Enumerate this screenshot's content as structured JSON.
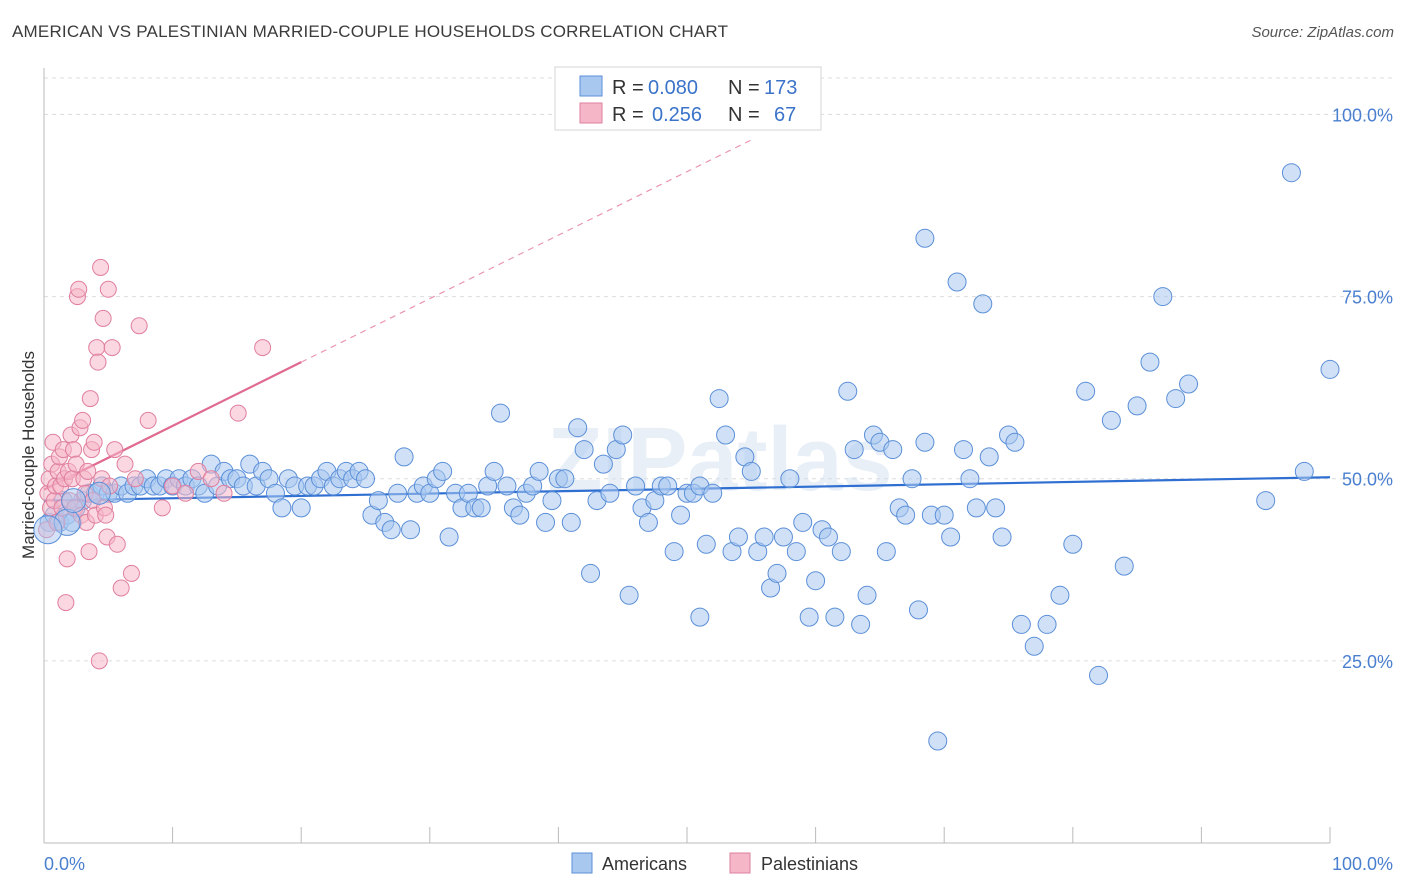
{
  "title": "AMERICAN VS PALESTINIAN MARRIED-COUPLE HOUSEHOLDS CORRELATION CHART",
  "source": "Source: ZipAtlas.com",
  "watermark": "ZIPatlas",
  "colors": {
    "americans_fill": "#a9c8f0",
    "americans_stroke": "#5b8fd8",
    "americans_line": "#2f6fd1",
    "palestinians_fill": "#f5b7c8",
    "palestinians_stroke": "#e07f9f",
    "palestinians_line": "#e0698f",
    "axis_label": "#4a7fd0"
  },
  "legend": {
    "rows": [
      {
        "r_label": "R =",
        "r_value": "0.080",
        "n_label": "N =",
        "n_value": "173"
      },
      {
        "r_label": "R =",
        "r_value": "0.256",
        "n_label": "N =",
        "n_value": "67"
      }
    ]
  },
  "bottom_legend": [
    "Americans",
    "Palestinians"
  ],
  "chart_data": {
    "type": "scatter",
    "title": "AMERICAN VS PALESTINIAN MARRIED-COUPLE HOUSEHOLDS CORRELATION CHART",
    "xlabel": "",
    "ylabel": "Married-couple Households",
    "xlim": [
      0,
      100
    ],
    "ylim": [
      0,
      105
    ],
    "x_tick_labels": [
      "0.0%",
      "100.0%"
    ],
    "y_ticks": [
      25,
      50,
      75,
      100
    ],
    "y_tick_labels": [
      "25.0%",
      "50.0%",
      "75.0%",
      "100.0%"
    ],
    "grid": true,
    "legend_position": "top-center",
    "series": [
      {
        "name": "Americans",
        "r": 0.08,
        "n": 173,
        "trend": {
          "x": [
            0,
            100
          ],
          "y": [
            47.0,
            50.2
          ]
        },
        "points": [
          [
            0.4,
            44
          ],
          [
            0.8,
            45
          ],
          [
            1.2,
            44
          ],
          [
            1.5,
            47
          ],
          [
            1.8,
            45
          ],
          [
            2.2,
            44
          ],
          [
            2.5,
            46
          ],
          [
            3,
            47
          ],
          [
            3.5,
            48
          ],
          [
            4,
            48
          ],
          [
            4.5,
            49
          ],
          [
            5,
            48
          ],
          [
            5.5,
            48
          ],
          [
            6,
            49
          ],
          [
            6.5,
            48
          ],
          [
            7,
            49
          ],
          [
            7.5,
            49
          ],
          [
            8,
            50
          ],
          [
            8.5,
            49
          ],
          [
            9,
            49
          ],
          [
            9.5,
            50
          ],
          [
            10,
            49
          ],
          [
            10.5,
            50
          ],
          [
            11,
            49
          ],
          [
            11.5,
            50
          ],
          [
            12,
            49
          ],
          [
            12.5,
            48
          ],
          [
            13,
            52
          ],
          [
            13.5,
            49
          ],
          [
            14,
            51
          ],
          [
            14.5,
            50
          ],
          [
            15,
            50
          ],
          [
            15.5,
            49
          ],
          [
            16,
            52
          ],
          [
            16.5,
            49
          ],
          [
            17,
            51
          ],
          [
            17.5,
            50
          ],
          [
            18,
            48
          ],
          [
            18.5,
            46
          ],
          [
            19,
            50
          ],
          [
            19.5,
            49
          ],
          [
            20,
            46
          ],
          [
            20.5,
            49
          ],
          [
            21,
            49
          ],
          [
            21.5,
            50
          ],
          [
            22,
            51
          ],
          [
            22.5,
            49
          ],
          [
            23,
            50
          ],
          [
            23.5,
            51
          ],
          [
            24,
            50
          ],
          [
            24.5,
            51
          ],
          [
            25,
            50
          ],
          [
            25.5,
            45
          ],
          [
            26,
            47
          ],
          [
            26.5,
            44
          ],
          [
            27,
            43
          ],
          [
            27.5,
            48
          ],
          [
            28,
            53
          ],
          [
            28.5,
            43
          ],
          [
            29,
            48
          ],
          [
            29.5,
            49
          ],
          [
            30,
            48
          ],
          [
            30.5,
            50
          ],
          [
            31,
            51
          ],
          [
            31.5,
            42
          ],
          [
            32,
            48
          ],
          [
            32.5,
            46
          ],
          [
            33,
            48
          ],
          [
            33.5,
            46
          ],
          [
            34,
            46
          ],
          [
            34.5,
            49
          ],
          [
            35,
            51
          ],
          [
            35.5,
            59
          ],
          [
            36,
            49
          ],
          [
            36.5,
            46
          ],
          [
            37,
            45
          ],
          [
            37.5,
            48
          ],
          [
            38,
            49
          ],
          [
            38.5,
            51
          ],
          [
            39,
            44
          ],
          [
            39.5,
            47
          ],
          [
            40,
            50
          ],
          [
            40.5,
            50
          ],
          [
            41,
            44
          ],
          [
            41.5,
            57
          ],
          [
            42,
            54
          ],
          [
            42.5,
            37
          ],
          [
            43,
            47
          ],
          [
            43.5,
            52
          ],
          [
            44,
            48
          ],
          [
            44.5,
            54
          ],
          [
            45,
            56
          ],
          [
            45.5,
            34
          ],
          [
            46,
            49
          ],
          [
            46.5,
            46
          ],
          [
            47,
            44
          ],
          [
            47.5,
            47
          ],
          [
            48,
            49
          ],
          [
            48.5,
            49
          ],
          [
            49,
            40
          ],
          [
            49.5,
            45
          ],
          [
            50,
            48
          ],
          [
            50.5,
            48
          ],
          [
            51,
            49
          ],
          [
            51.5,
            41
          ],
          [
            52,
            48
          ],
          [
            52.5,
            61
          ],
          [
            53,
            56
          ],
          [
            53.5,
            40
          ],
          [
            54,
            42
          ],
          [
            54.5,
            53
          ],
          [
            55,
            51
          ],
          [
            55.5,
            40
          ],
          [
            56,
            42
          ],
          [
            56.5,
            35
          ],
          [
            57,
            37
          ],
          [
            57.5,
            42
          ],
          [
            58,
            50
          ],
          [
            58.5,
            40
          ],
          [
            59,
            44
          ],
          [
            59.5,
            31
          ],
          [
            60,
            36
          ],
          [
            60.5,
            43
          ],
          [
            61,
            42
          ],
          [
            61.5,
            31
          ],
          [
            62,
            40
          ],
          [
            62.5,
            62
          ],
          [
            63,
            54
          ],
          [
            63.5,
            30
          ],
          [
            64,
            34
          ],
          [
            64.5,
            56
          ],
          [
            65,
            55
          ],
          [
            65.5,
            40
          ],
          [
            66,
            54
          ],
          [
            66.5,
            46
          ],
          [
            67,
            45
          ],
          [
            67.5,
            50
          ],
          [
            68,
            32
          ],
          [
            68.5,
            55
          ],
          [
            69,
            45
          ],
          [
            69.5,
            14
          ],
          [
            70,
            45
          ],
          [
            70.5,
            42
          ],
          [
            71,
            77
          ],
          [
            71.5,
            54
          ],
          [
            72,
            50
          ],
          [
            72.5,
            46
          ],
          [
            73,
            74
          ],
          [
            73.5,
            53
          ],
          [
            74,
            46
          ],
          [
            74.5,
            42
          ],
          [
            75,
            56
          ],
          [
            75.5,
            55
          ],
          [
            76,
            30
          ],
          [
            77,
            27
          ],
          [
            78,
            30
          ],
          [
            79,
            34
          ],
          [
            80,
            41
          ],
          [
            81,
            62
          ],
          [
            82,
            23
          ],
          [
            83,
            58
          ],
          [
            84,
            38
          ],
          [
            85,
            60
          ],
          [
            86,
            66
          ],
          [
            87,
            75
          ],
          [
            88,
            61
          ],
          [
            89,
            63
          ],
          [
            95,
            47
          ],
          [
            97,
            92
          ],
          [
            98,
            51
          ],
          [
            100,
            65
          ],
          [
            68.5,
            83
          ],
          [
            51,
            31
          ]
        ]
      },
      {
        "name": "Palestinians",
        "r": 0.256,
        "n": 67,
        "trend": {
          "x": [
            0,
            20
          ],
          "y": [
            48.5,
            66.0
          ]
        },
        "trend_dashed": {
          "x": [
            20,
            55
          ],
          "y": [
            66.0,
            96.5
          ]
        },
        "points": [
          [
            0.2,
            43
          ],
          [
            0.3,
            48
          ],
          [
            0.4,
            50
          ],
          [
            0.5,
            46
          ],
          [
            0.6,
            52
          ],
          [
            0.7,
            55
          ],
          [
            0.8,
            47
          ],
          [
            0.9,
            49
          ],
          [
            1.0,
            44
          ],
          [
            1.1,
            51
          ],
          [
            1.2,
            53
          ],
          [
            1.3,
            49
          ],
          [
            1.4,
            46
          ],
          [
            1.5,
            54
          ],
          [
            1.6,
            50
          ],
          [
            1.7,
            33
          ],
          [
            1.8,
            39
          ],
          [
            1.9,
            51
          ],
          [
            2.0,
            47
          ],
          [
            2.1,
            56
          ],
          [
            2.2,
            50
          ],
          [
            2.3,
            54
          ],
          [
            2.4,
            46
          ],
          [
            2.5,
            52
          ],
          [
            2.6,
            75
          ],
          [
            2.7,
            76
          ],
          [
            2.8,
            57
          ],
          [
            2.9,
            45
          ],
          [
            3.0,
            58
          ],
          [
            3.1,
            50
          ],
          [
            3.2,
            48
          ],
          [
            3.3,
            44
          ],
          [
            3.4,
            51
          ],
          [
            3.5,
            40
          ],
          [
            3.6,
            61
          ],
          [
            3.7,
            54
          ],
          [
            3.8,
            47
          ],
          [
            3.9,
            55
          ],
          [
            4.0,
            45
          ],
          [
            4.1,
            68
          ],
          [
            4.2,
            66
          ],
          [
            4.3,
            25
          ],
          [
            4.4,
            79
          ],
          [
            4.5,
            50
          ],
          [
            4.6,
            72
          ],
          [
            4.7,
            46
          ],
          [
            4.8,
            45
          ],
          [
            4.9,
            42
          ],
          [
            5.0,
            76
          ],
          [
            5.1,
            49
          ],
          [
            5.3,
            68
          ],
          [
            5.5,
            54
          ],
          [
            5.7,
            41
          ],
          [
            6.0,
            35
          ],
          [
            6.3,
            52
          ],
          [
            6.8,
            37
          ],
          [
            7.1,
            50
          ],
          [
            7.4,
            71
          ],
          [
            8.1,
            58
          ],
          [
            9.2,
            46
          ],
          [
            10.0,
            49
          ],
          [
            11.0,
            48
          ],
          [
            12.0,
            51
          ],
          [
            13.0,
            50
          ],
          [
            14.0,
            48
          ],
          [
            15.1,
            59
          ],
          [
            17.0,
            68
          ]
        ]
      }
    ]
  }
}
